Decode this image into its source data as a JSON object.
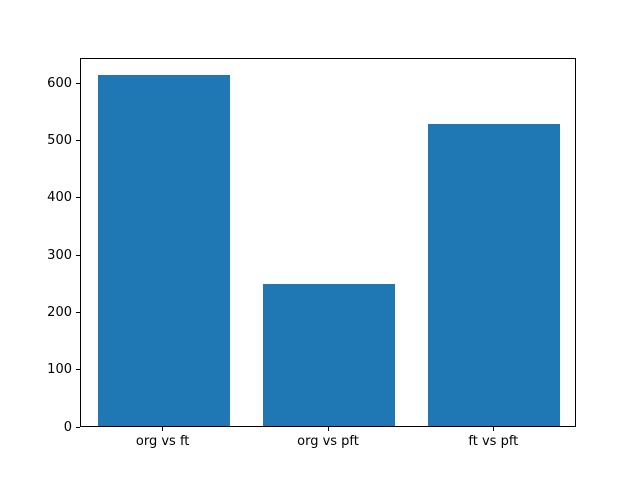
{
  "chart_data": {
    "type": "bar",
    "categories": [
      "org vs ft",
      "org vs pft",
      "ft vs pft"
    ],
    "values": [
      613,
      247,
      527
    ],
    "title": "",
    "xlabel": "",
    "ylabel": "",
    "ylim": [
      0,
      644
    ],
    "yticks": [
      0,
      100,
      200,
      300,
      400,
      500,
      600
    ],
    "bar_color": "#1f77b4",
    "background_color": "#ffffff",
    "bar_width_fraction": 0.8,
    "grid": false,
    "legend": "none"
  }
}
